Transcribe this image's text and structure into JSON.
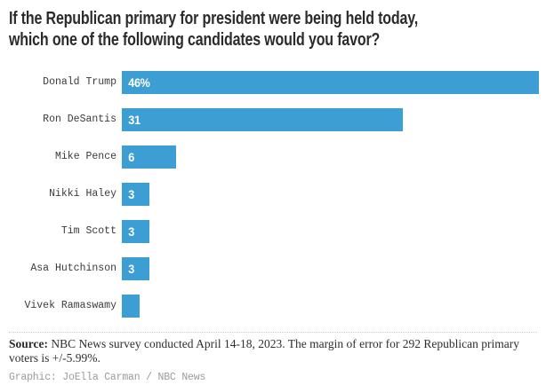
{
  "title": {
    "line1": "If the Republican primary for president were being held today,",
    "line2": "which one of the following candidates would you favor?"
  },
  "chart_data": {
    "type": "bar",
    "orientation": "horizontal",
    "title": "If the Republican primary for president were being held today, which one of the following candidates would you favor?",
    "categories": [
      "Donald Trump",
      "Ron DeSantis",
      "Mike Pence",
      "Nikki Haley",
      "Tim Scott",
      "Asa Hutchinson",
      "Vivek Ramaswamy"
    ],
    "values": [
      46,
      31,
      6,
      3,
      3,
      3,
      2
    ],
    "value_labels": [
      "46%",
      "31",
      "6",
      "3",
      "3",
      "3",
      ""
    ],
    "xlim": [
      0,
      46
    ],
    "bar_color": "#3d9ed3",
    "grid": false,
    "legend": false
  },
  "footer": {
    "source_label": "Source:",
    "source_line1": " NBC News survey conducted April 14-18, 2023. The margin of error for 292 Republican primary",
    "source_line2": "voters is +/-5.99%.",
    "credit": "Graphic: JoElla Carman / NBC News"
  },
  "colors": {
    "bar": "#3d9ed3",
    "title_text": "#2b2b2b",
    "label_text": "#3b3b3b",
    "source_text": "#2e2e2e",
    "credit_text": "#9b9b9b",
    "divider": "#cccccc",
    "background": "#ffffff"
  }
}
